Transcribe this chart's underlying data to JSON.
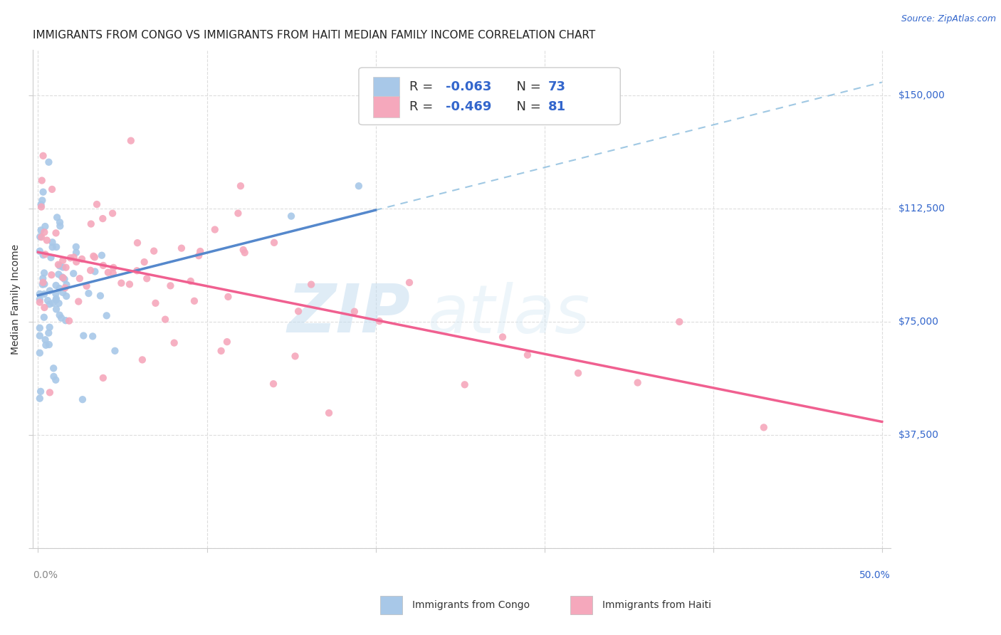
{
  "title": "IMMIGRANTS FROM CONGO VS IMMIGRANTS FROM HAITI MEDIAN FAMILY INCOME CORRELATION CHART",
  "source": "Source: ZipAtlas.com",
  "ylabel": "Median Family Income",
  "ytick_positions": [
    37500,
    75000,
    112500,
    150000
  ],
  "ytick_labels": [
    "$37,500",
    "$75,000",
    "$112,500",
    "$150,000"
  ],
  "xlim": [
    -0.003,
    0.505
  ],
  "ylim": [
    10000,
    165000
  ],
  "legend_r1_prefix": "R = ",
  "legend_r1_value": "-0.063",
  "legend_n1_prefix": "N = ",
  "legend_n1_value": "73",
  "legend_r2_prefix": "R = ",
  "legend_r2_value": "-0.469",
  "legend_n2_prefix": "N = ",
  "legend_n2_value": "81",
  "color_congo": "#a8c8e8",
  "color_haiti": "#f5a8bc",
  "color_trend_congo_solid": "#5588cc",
  "color_trend_congo_dash": "#88bbdd",
  "color_trend_haiti": "#f06090",
  "color_text_blue": "#3366cc",
  "color_grid": "#dddddd",
  "background_color": "#ffffff",
  "watermark_zip": "ZIP",
  "watermark_atlas": "atlas",
  "title_fontsize": 11,
  "axis_label_fontsize": 10,
  "tick_fontsize": 10,
  "legend_fontsize": 13
}
